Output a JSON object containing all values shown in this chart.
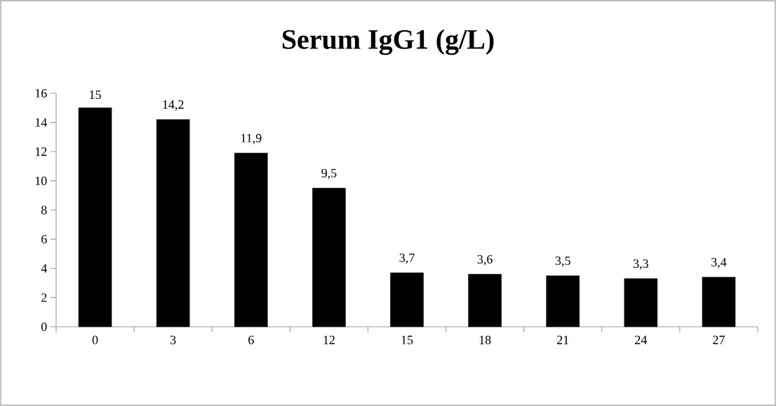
{
  "chart_data": {
    "type": "bar",
    "title": "Serum IgG1 (g/L)",
    "categories": [
      "0",
      "3",
      "6",
      "12",
      "15",
      "18",
      "21",
      "24",
      "27"
    ],
    "values": [
      15,
      14.2,
      11.9,
      9.5,
      3.7,
      3.6,
      3.5,
      3.3,
      3.4
    ],
    "value_labels": [
      "15",
      "14,2",
      "11,9",
      "9,5",
      "3,7",
      "3,6",
      "3,5",
      "3,3",
      "3,4"
    ],
    "color": "#000000",
    "ylim": [
      0,
      16
    ],
    "yticks": [
      0,
      2,
      4,
      6,
      8,
      10,
      12,
      14,
      16
    ]
  }
}
